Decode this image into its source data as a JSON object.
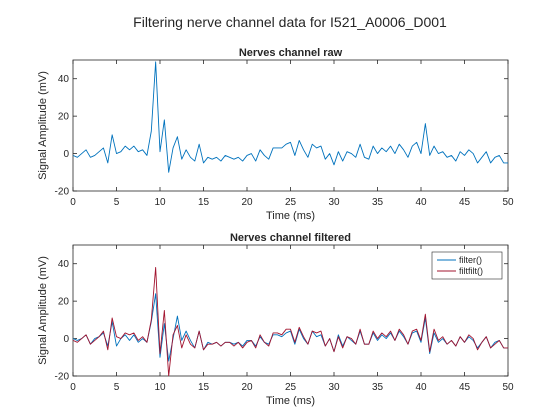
{
  "figure": {
    "title": "Filtering nerve channel data for I521_A0006_D001"
  },
  "colors": {
    "raw": "#0072BD",
    "filter": "#0072BD",
    "filtfilt": "#A2142F",
    "axis": "#262626"
  },
  "chart_data": [
    {
      "type": "line",
      "title": "Nerves channel raw",
      "xlabel": "Time (ms)",
      "ylabel": "Signal Amplitude (mV)",
      "xlim": [
        0,
        50
      ],
      "ylim": [
        -20,
        50
      ],
      "xticks": [
        0,
        5,
        10,
        15,
        20,
        25,
        30,
        35,
        40,
        45,
        50
      ],
      "yticks": [
        -20,
        0,
        20,
        40
      ],
      "grid": false,
      "legend": null,
      "series": [
        {
          "x": [
            0,
            0.5,
            1,
            1.5,
            2,
            2.5,
            3,
            3.5,
            4,
            4.5,
            5,
            5.5,
            6,
            6.5,
            7,
            7.5,
            8,
            8.5,
            9,
            9.5,
            10,
            10.5,
            11,
            11.5,
            12,
            12.5,
            13,
            13.5,
            14,
            14.5,
            15,
            15.5,
            16,
            16.5,
            17,
            17.5,
            18,
            18.5,
            19,
            19.5,
            20,
            20.5,
            21,
            21.5,
            22,
            22.5,
            23,
            23.5,
            24,
            24.5,
            25,
            25.5,
            26,
            26.5,
            27,
            27.5,
            28,
            28.5,
            29,
            29.5,
            30,
            30.5,
            31,
            31.5,
            32,
            32.5,
            33,
            33.5,
            34,
            34.5,
            35,
            35.5,
            36,
            36.5,
            37,
            37.5,
            38,
            38.5,
            39,
            39.5,
            40,
            40.5,
            41,
            41.5,
            42,
            42.5,
            43,
            43.5,
            44,
            44.5,
            45,
            45.5,
            46,
            46.5,
            47,
            47.5,
            48,
            48.5,
            49,
            49.5,
            50
          ],
          "values": [
            -1,
            -2,
            0,
            2,
            -2,
            -1,
            1,
            3,
            -5,
            10,
            0,
            1,
            4,
            2,
            4,
            1,
            2,
            -1,
            12,
            49,
            1,
            18,
            -10,
            3,
            9,
            -3,
            2,
            -2,
            -4,
            5,
            -5,
            -2,
            -3,
            -2,
            -4,
            -1,
            -2,
            -3,
            -2,
            -4,
            -1,
            0,
            -4,
            2,
            -1,
            -3,
            3,
            3,
            3,
            5,
            6,
            -1,
            7,
            2,
            -2,
            5,
            3,
            4,
            -3,
            0,
            -6,
            1,
            -4,
            1,
            0,
            -2,
            5,
            -2,
            -3,
            4,
            0,
            3,
            1,
            4,
            0,
            5,
            2,
            -2,
            4,
            6,
            0,
            16,
            -1,
            4,
            0,
            1,
            -2,
            -1,
            -4,
            1,
            -1,
            2,
            0,
            -5,
            -2,
            1,
            -5,
            -2,
            -1,
            -5,
            -5
          ]
        }
      ]
    },
    {
      "type": "line",
      "title": "Nerves channel filtered",
      "xlabel": "Time (ms)",
      "ylabel": "Signal Amplitude (mV)",
      "xlim": [
        0,
        50
      ],
      "ylim": [
        -20,
        50
      ],
      "xticks": [
        0,
        5,
        10,
        15,
        20,
        25,
        30,
        35,
        40,
        45,
        50
      ],
      "yticks": [
        -20,
        0,
        20,
        40
      ],
      "grid": false,
      "legend": "top-right",
      "series": [
        {
          "name": "filter()",
          "x": [
            0,
            0.5,
            1,
            1.5,
            2,
            2.5,
            3,
            3.5,
            4,
            4.5,
            5,
            5.5,
            6,
            6.5,
            7,
            7.5,
            8,
            8.5,
            9,
            9.5,
            10,
            10.5,
            11,
            11.5,
            12,
            12.5,
            13,
            13.5,
            14,
            14.5,
            15,
            15.5,
            16,
            16.5,
            17,
            17.5,
            18,
            18.5,
            19,
            19.5,
            20,
            20.5,
            21,
            21.5,
            22,
            22.5,
            23,
            23.5,
            24,
            24.5,
            25,
            25.5,
            26,
            26.5,
            27,
            27.5,
            28,
            28.5,
            29,
            29.5,
            30,
            30.5,
            31,
            31.5,
            32,
            32.5,
            33,
            33.5,
            34,
            34.5,
            35,
            35.5,
            36,
            36.5,
            37,
            37.5,
            38,
            38.5,
            39,
            39.5,
            40,
            40.5,
            41,
            41.5,
            42,
            42.5,
            43,
            43.5,
            44,
            44.5,
            45,
            45.5,
            46,
            46.5,
            47,
            47.5,
            48,
            48.5,
            49,
            49.5,
            50
          ],
          "values": [
            0,
            -1,
            0,
            2,
            -3,
            0,
            1,
            3,
            -4,
            9,
            -4,
            0,
            2,
            -1,
            2,
            -2,
            0,
            -2,
            9,
            24,
            -10,
            8,
            -12,
            0,
            12,
            -1,
            4,
            -1,
            -5,
            4,
            -6,
            -2,
            -3,
            -2,
            -4,
            -2,
            -2,
            -3,
            -2,
            -4,
            -1,
            -1,
            -4,
            1,
            -2,
            -3,
            2,
            2,
            1,
            3,
            4,
            -3,
            5,
            0,
            -3,
            4,
            1,
            2,
            -4,
            0,
            -7,
            2,
            -4,
            1,
            -1,
            -3,
            4,
            -3,
            -3,
            3,
            -1,
            2,
            0,
            3,
            -1,
            4,
            1,
            -3,
            3,
            4,
            -2,
            11,
            -8,
            3,
            -2,
            0,
            -3,
            -1,
            -4,
            1,
            -2,
            1,
            -1,
            -5,
            -2,
            1,
            -5,
            -2,
            -1,
            -5,
            -5
          ]
        },
        {
          "name": "filtfilt()",
          "x": [
            0,
            0.5,
            1,
            1.5,
            2,
            2.5,
            3,
            3.5,
            4,
            4.5,
            5,
            5.5,
            6,
            6.5,
            7,
            7.5,
            8,
            8.5,
            9,
            9.5,
            10,
            10.5,
            11,
            11.5,
            12,
            12.5,
            13,
            13.5,
            14,
            14.5,
            15,
            15.5,
            16,
            16.5,
            17,
            17.5,
            18,
            18.5,
            19,
            19.5,
            20,
            20.5,
            21,
            21.5,
            22,
            22.5,
            23,
            23.5,
            24,
            24.5,
            25,
            25.5,
            26,
            26.5,
            27,
            27.5,
            28,
            28.5,
            29,
            29.5,
            30,
            30.5,
            31,
            31.5,
            32,
            32.5,
            33,
            33.5,
            34,
            34.5,
            35,
            35.5,
            36,
            36.5,
            37,
            37.5,
            38,
            38.5,
            39,
            39.5,
            40,
            40.5,
            41,
            41.5,
            42,
            42.5,
            43,
            43.5,
            44,
            44.5,
            45,
            45.5,
            46,
            46.5,
            47,
            47.5,
            48,
            48.5,
            49,
            49.5,
            50
          ],
          "values": [
            -1,
            -2,
            0,
            2,
            -3,
            -1,
            1,
            4,
            -6,
            11,
            1,
            0,
            3,
            2,
            3,
            -1,
            1,
            -2,
            10,
            38,
            -8,
            15,
            -20,
            2,
            7,
            -5,
            2,
            -3,
            -5,
            4,
            -6,
            -3,
            -3,
            -2,
            -4,
            -2,
            -2,
            -4,
            -2,
            -5,
            -2,
            -1,
            -5,
            2,
            -2,
            -4,
            3,
            3,
            2,
            5,
            5,
            -2,
            6,
            1,
            -3,
            4,
            3,
            4,
            -4,
            0,
            -7,
            1,
            -5,
            1,
            0,
            -3,
            5,
            -3,
            -3,
            4,
            0,
            3,
            1,
            4,
            -1,
            5,
            2,
            -3,
            4,
            5,
            -1,
            13,
            -7,
            5,
            -1,
            1,
            -3,
            -1,
            -4,
            1,
            -2,
            2,
            0,
            -6,
            -2,
            1,
            -5,
            -3,
            -1,
            -5,
            -5
          ]
        }
      ]
    }
  ]
}
